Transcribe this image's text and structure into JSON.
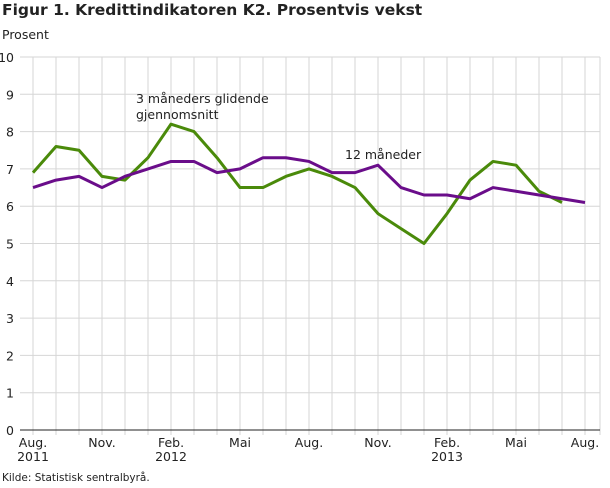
{
  "title": "Figur 1. Kredittindikatoren K2. Prosentvis vekst",
  "source": "Kilde: Statistisk sentralbyrå.",
  "chart_data": {
    "type": "line",
    "title": "Figur 1. Kredittindikatoren K2. Prosentvis vekst",
    "ylabel": "Prosent",
    "xlabel": "",
    "ylim": [
      0,
      10
    ],
    "yticks": [
      0,
      1,
      2,
      3,
      4,
      5,
      6,
      7,
      8,
      9,
      10
    ],
    "grid": true,
    "x": [
      "Aug 2011",
      "Sep 2011",
      "Okt 2011",
      "Nov 2011",
      "Des 2011",
      "Jan 2012",
      "Feb 2012",
      "Mar 2012",
      "Apr 2012",
      "Mai 2012",
      "Jun 2012",
      "Jul 2012",
      "Aug 2012",
      "Sep 2012",
      "Okt 2012",
      "Nov 2012",
      "Des 2012",
      "Jan 2013",
      "Feb 2013",
      "Mar 2013",
      "Apr 2013",
      "Mai 2013",
      "Jun 2013",
      "Jul 2013",
      "Aug 2013"
    ],
    "xticks": [
      {
        "i": 0,
        "l1": "Aug.",
        "l2": "2011"
      },
      {
        "i": 3,
        "l1": "Nov.",
        "l2": ""
      },
      {
        "i": 6,
        "l1": "Feb.",
        "l2": "2012"
      },
      {
        "i": 9,
        "l1": "Mai",
        "l2": ""
      },
      {
        "i": 12,
        "l1": "Aug.",
        "l2": ""
      },
      {
        "i": 15,
        "l1": "Nov.",
        "l2": ""
      },
      {
        "i": 18,
        "l1": "Feb.",
        "l2": "2013"
      },
      {
        "i": 21,
        "l1": "Mai",
        "l2": ""
      },
      {
        "i": 24,
        "l1": "Aug.",
        "l2": ""
      }
    ],
    "series": [
      {
        "name": "12 måneder",
        "color": "#6a0d8a",
        "values": [
          6.5,
          6.7,
          6.8,
          6.5,
          6.8,
          7.0,
          7.2,
          7.2,
          6.9,
          7.0,
          7.3,
          7.3,
          7.2,
          6.9,
          6.9,
          7.1,
          6.5,
          6.3,
          6.3,
          6.2,
          6.5,
          6.4,
          6.3,
          6.2,
          6.1
        ]
      },
      {
        "name": "3 måneders glidende gjennomsnitt",
        "color": "#4a8a0a",
        "values": [
          6.9,
          7.6,
          7.5,
          6.8,
          6.7,
          7.3,
          8.2,
          8.0,
          7.3,
          6.5,
          6.5,
          6.8,
          7.0,
          6.8,
          6.5,
          5.8,
          5.4,
          5.0,
          5.8,
          6.7,
          7.2,
          7.1,
          6.4,
          6.1,
          null
        ]
      }
    ],
    "annotations": [
      {
        "lines": [
          "3 måneders glidende",
          "gjennomsnitt"
        ]
      },
      {
        "lines": [
          "12 måneder"
        ]
      }
    ]
  }
}
